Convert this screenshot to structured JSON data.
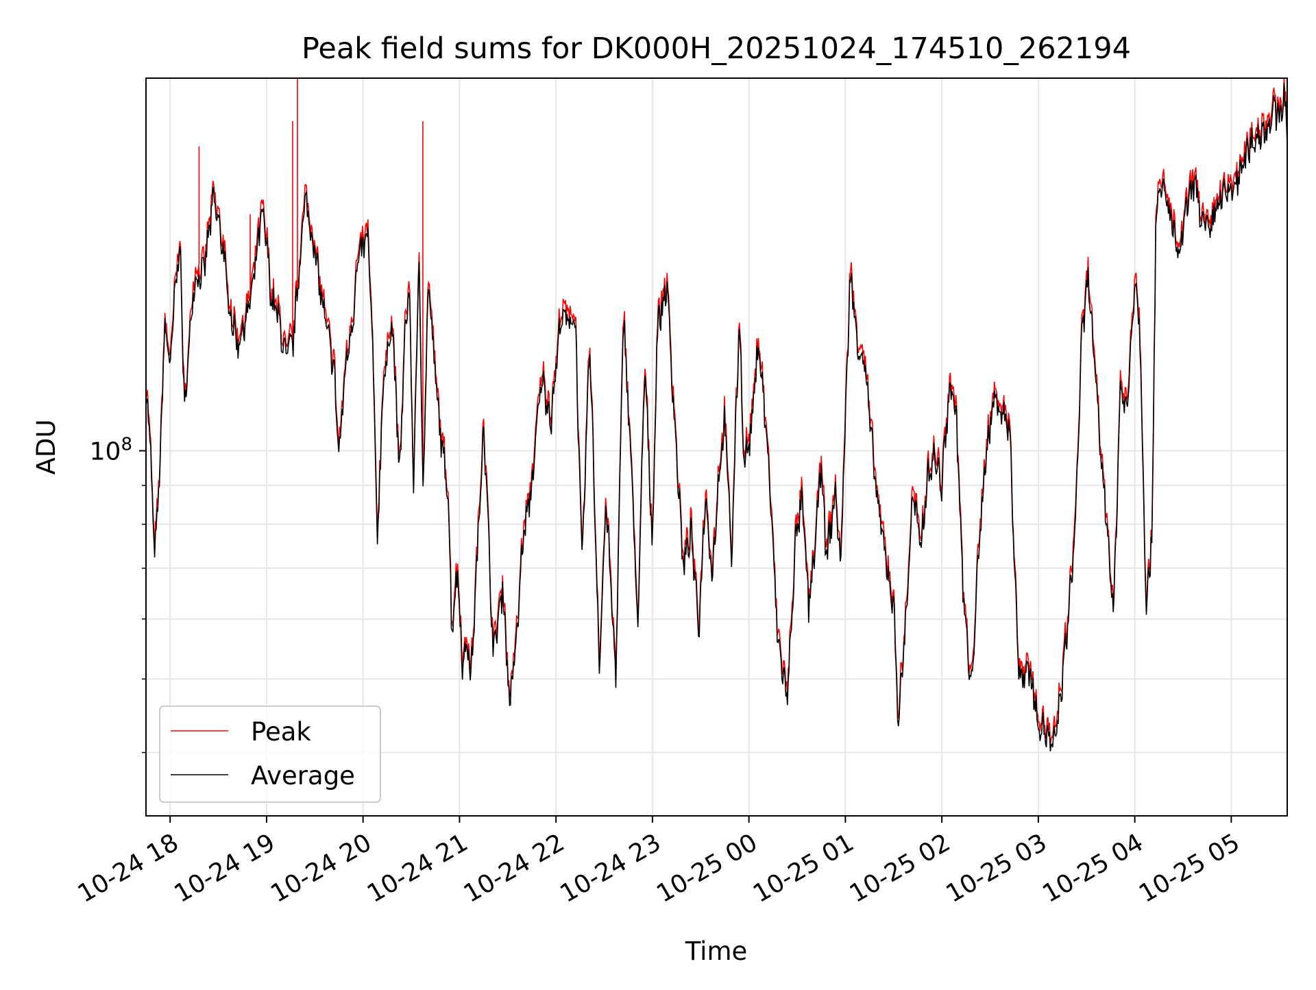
{
  "chart_data": {
    "type": "line",
    "title": "Peak field sums for DK000H_20251024_174510_262194",
    "xlabel": "Time",
    "ylabel": "ADU",
    "yscale": "log",
    "ylim": [
      33000000,
      310000000
    ],
    "xlim_hours": [
      -0.25,
      11.58
    ],
    "grid": true,
    "legend_position": "lower-left",
    "x_tick_labels": [
      "10-24 18",
      "10-24 19",
      "10-24 20",
      "10-24 21",
      "10-24 22",
      "10-24 23",
      "10-25 00",
      "10-25 01",
      "10-25 02",
      "10-25 03",
      "10-25 04",
      "10-25 05"
    ],
    "y_major_tick": {
      "value": 100000000,
      "base": "10",
      "exponent": "8"
    },
    "y_minor_ticks": [
      40000000,
      50000000,
      60000000,
      70000000,
      80000000,
      90000000
    ],
    "series": [
      {
        "name": "Peak",
        "color": "#ff0000"
      },
      {
        "name": "Average",
        "color": "#000000"
      }
    ],
    "average_anchors_hours": [
      -0.25,
      -0.2,
      -0.17,
      -0.12,
      -0.08,
      -0.05,
      0.0,
      0.05,
      0.1,
      0.15,
      0.2,
      0.25,
      0.35,
      0.45,
      0.55,
      0.6,
      0.7,
      0.78,
      0.85,
      0.95,
      1.0,
      1.05,
      1.12,
      1.2,
      1.28,
      1.33,
      1.4,
      1.48,
      1.55,
      1.62,
      1.7,
      1.75,
      1.82,
      1.9,
      1.95,
      2.0,
      2.05,
      2.1,
      2.15,
      2.2,
      2.3,
      2.38,
      2.43,
      2.48,
      2.52,
      2.58,
      2.62,
      2.68,
      2.72,
      2.78,
      2.83,
      2.88,
      2.92,
      2.98,
      3.03,
      3.08,
      3.12,
      3.2,
      3.25,
      3.35,
      3.45,
      3.52,
      3.6,
      3.65,
      3.75,
      3.85,
      3.95,
      4.05,
      4.12,
      4.2,
      4.27,
      4.35,
      4.45,
      4.52,
      4.62,
      4.7,
      4.78,
      4.85,
      4.92,
      5.0,
      5.05,
      5.15,
      5.22,
      5.32,
      5.4,
      5.48,
      5.55,
      5.62,
      5.68,
      5.75,
      5.82,
      5.9,
      5.95,
      6.02,
      6.1,
      6.2,
      6.3,
      6.4,
      6.48,
      6.55,
      6.62,
      6.7,
      6.75,
      6.8,
      6.9,
      6.95,
      7.05,
      7.12,
      7.2,
      7.28,
      7.35,
      7.42,
      7.5,
      7.55,
      7.62,
      7.7,
      7.78,
      7.85,
      7.92,
      8.0,
      8.08,
      8.15,
      8.22,
      8.3,
      8.38,
      8.45,
      8.55,
      8.62,
      8.7,
      8.8,
      8.9,
      9.0,
      9.1,
      9.15,
      9.22,
      9.3,
      9.38,
      9.45,
      9.52,
      9.58,
      9.65,
      9.72,
      9.78,
      9.85,
      9.92,
      10.0,
      10.05,
      10.12,
      10.18,
      10.22,
      10.3,
      10.38,
      10.45,
      10.55,
      10.62,
      10.7,
      10.78,
      10.85,
      10.92,
      11.0,
      11.1,
      11.2,
      11.3,
      11.38,
      11.45,
      11.5,
      11.55,
      11.58
    ],
    "average_anchors_adu": [
      120000000,
      100000000,
      73000000,
      85000000,
      120000000,
      148000000,
      128000000,
      160000000,
      190000000,
      112000000,
      140000000,
      168000000,
      172000000,
      215000000,
      185000000,
      158000000,
      138000000,
      148000000,
      162000000,
      205000000,
      188000000,
      158000000,
      150000000,
      132000000,
      140000000,
      170000000,
      215000000,
      190000000,
      165000000,
      145000000,
      128000000,
      98000000,
      130000000,
      152000000,
      178000000,
      185000000,
      192000000,
      135000000,
      75000000,
      118000000,
      150000000,
      92000000,
      138000000,
      168000000,
      88000000,
      178000000,
      90000000,
      168000000,
      140000000,
      112000000,
      98000000,
      90000000,
      58000000,
      70000000,
      52000000,
      56000000,
      50000000,
      80000000,
      110000000,
      54000000,
      66000000,
      46000000,
      58000000,
      75000000,
      90000000,
      125000000,
      110000000,
      150000000,
      148000000,
      150000000,
      70000000,
      140000000,
      52000000,
      86000000,
      50000000,
      152000000,
      96000000,
      58000000,
      130000000,
      75000000,
      145000000,
      165000000,
      115000000,
      70000000,
      78000000,
      58000000,
      88000000,
      68000000,
      90000000,
      110000000,
      72000000,
      150000000,
      96000000,
      105000000,
      140000000,
      98000000,
      56000000,
      47000000,
      75000000,
      86000000,
      62000000,
      78000000,
      98000000,
      72000000,
      88000000,
      70000000,
      172000000,
      140000000,
      130000000,
      100000000,
      82000000,
      72000000,
      62000000,
      44000000,
      58000000,
      88000000,
      74000000,
      92000000,
      98000000,
      90000000,
      122000000,
      112000000,
      65000000,
      48000000,
      72000000,
      98000000,
      118000000,
      112000000,
      108000000,
      50000000,
      52000000,
      44000000,
      42000000,
      40000000,
      46000000,
      58000000,
      78000000,
      140000000,
      170000000,
      130000000,
      98000000,
      78000000,
      60000000,
      122000000,
      112000000,
      170000000,
      148000000,
      62000000,
      78000000,
      212000000,
      220000000,
      202000000,
      178000000,
      212000000,
      226000000,
      200000000,
      192000000,
      212000000,
      216000000,
      220000000,
      232000000,
      254000000,
      262000000,
      268000000,
      280000000,
      276000000,
      295000000,
      262000000
    ],
    "peak_spikes": [
      {
        "time_hours": 0.3,
        "adu": 252000000
      },
      {
        "time_hours": 0.83,
        "adu": 205000000
      },
      {
        "time_hours": 1.27,
        "adu": 272000000
      },
      {
        "time_hours": 1.32,
        "adu": 310000000
      },
      {
        "time_hours": 2.62,
        "adu": 272000000
      }
    ]
  }
}
